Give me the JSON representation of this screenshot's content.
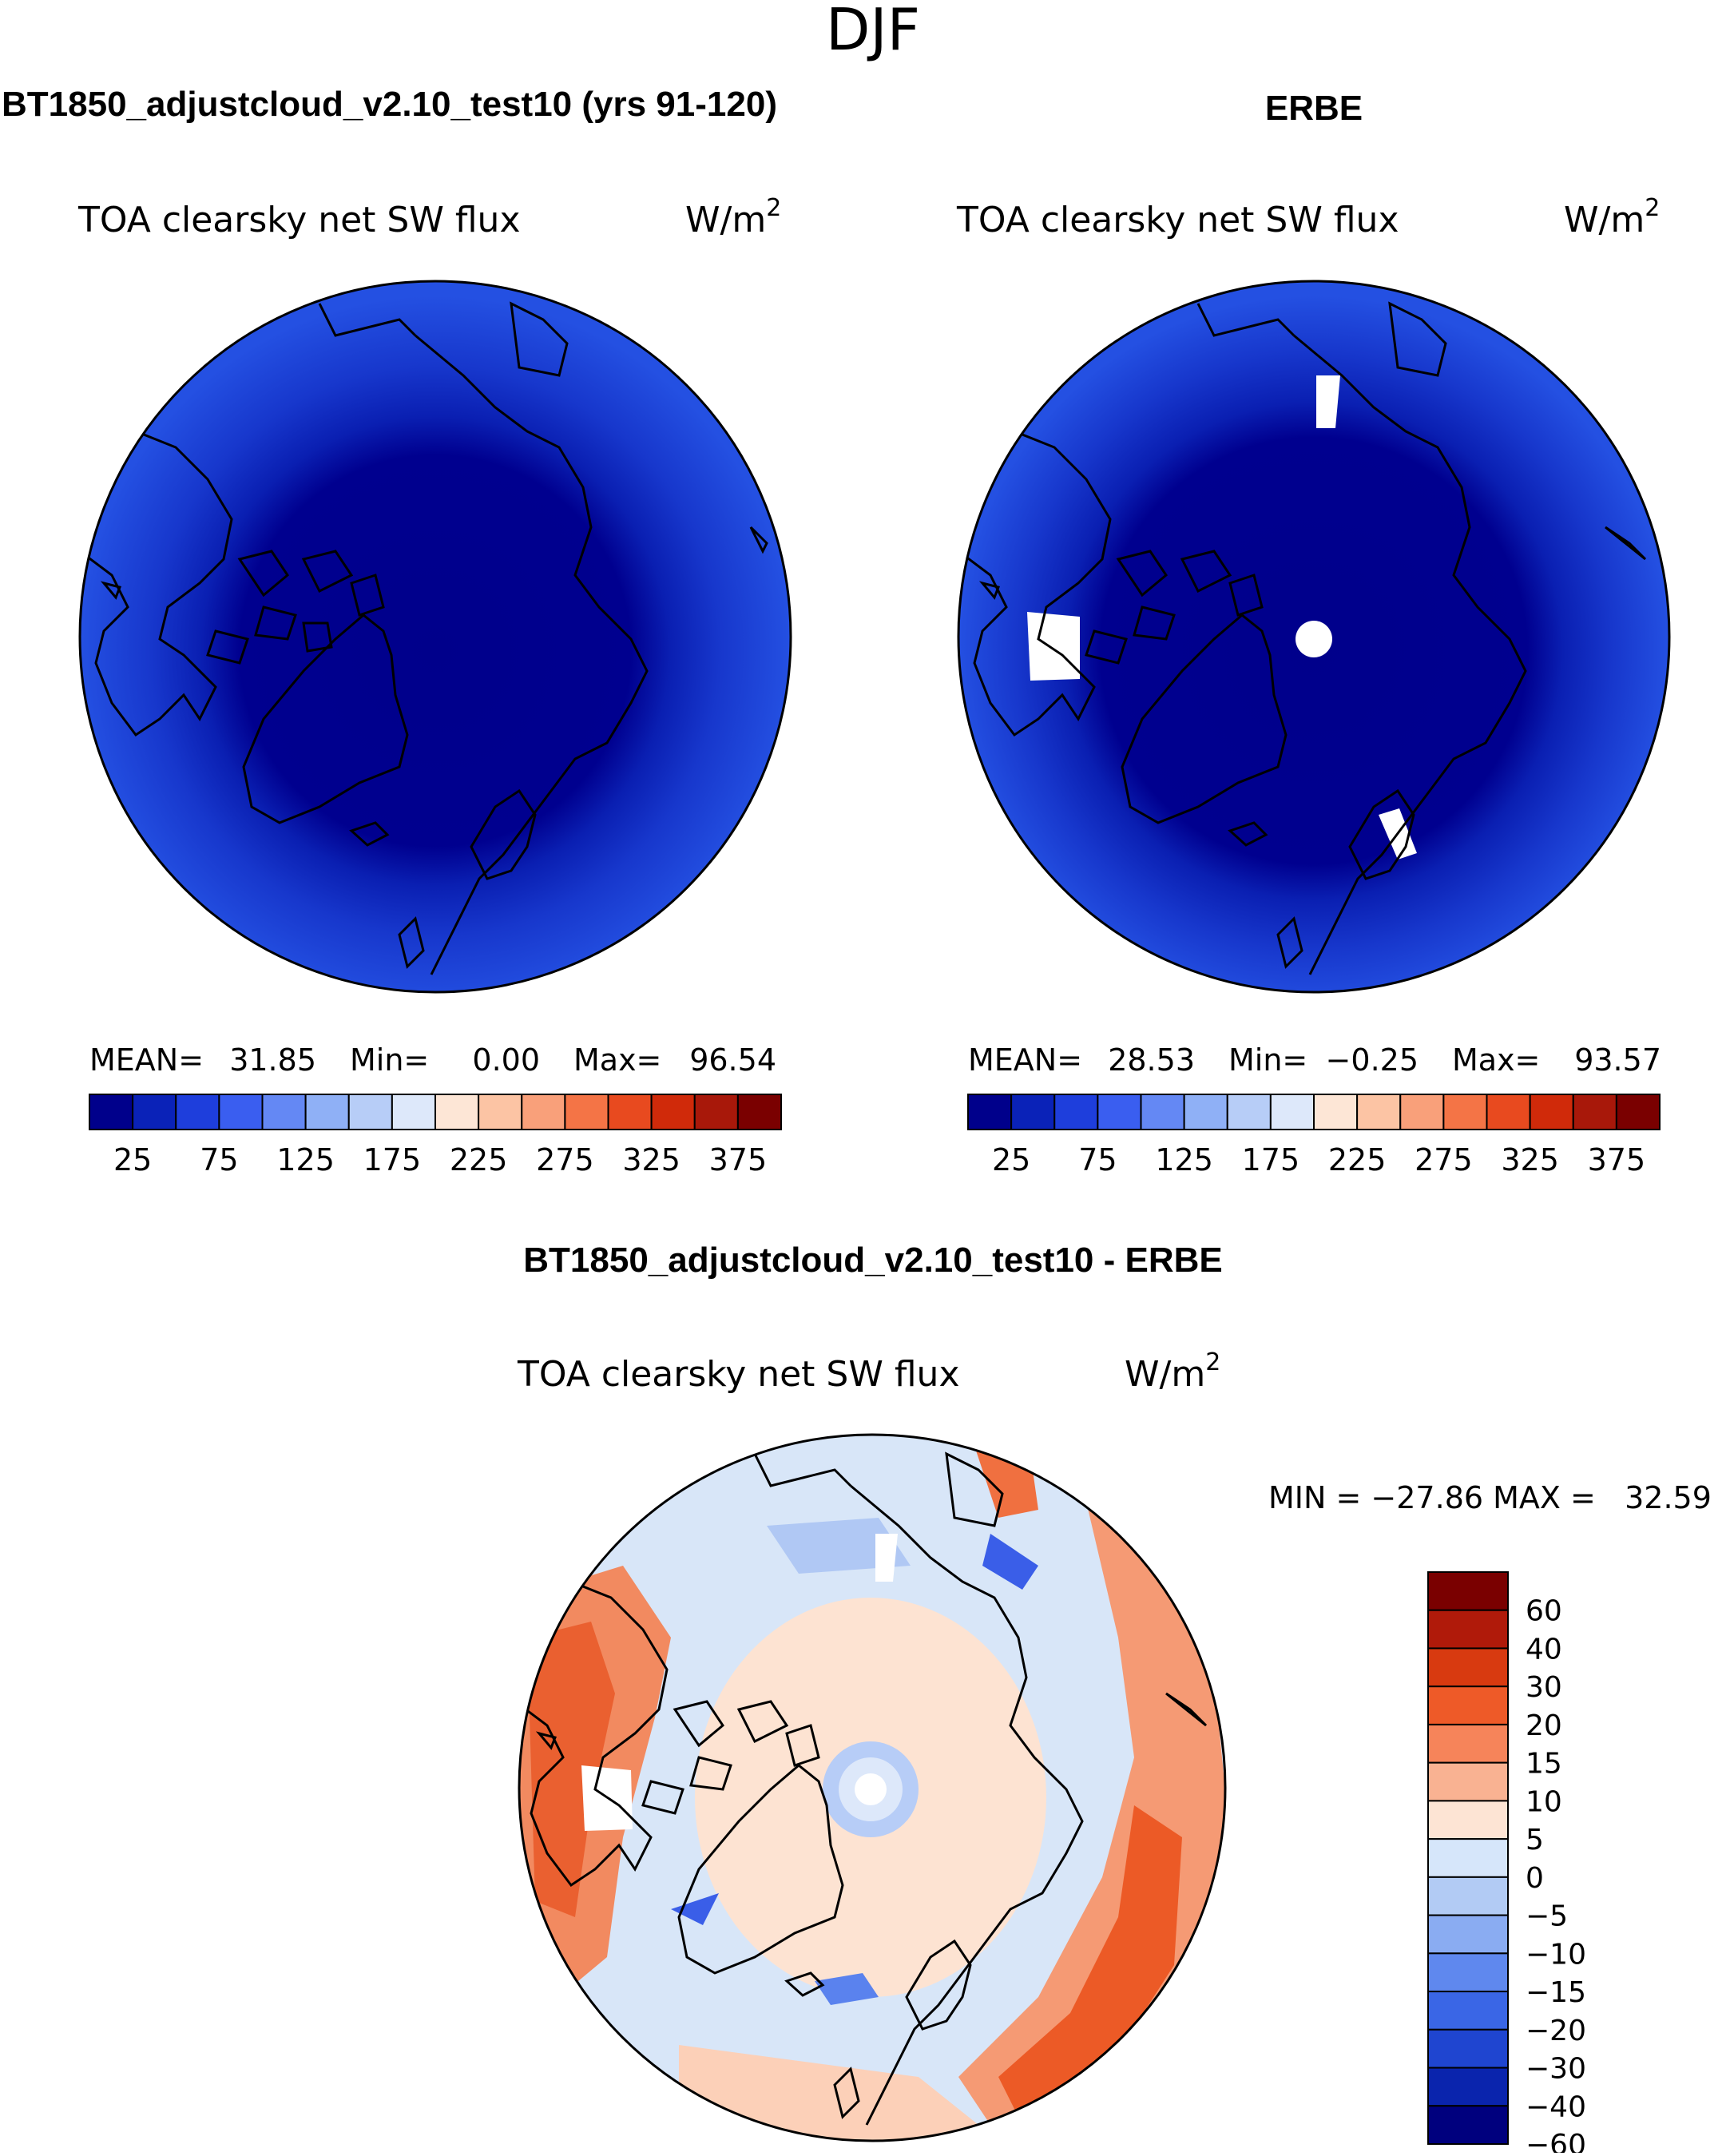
{
  "page_title": "DJF",
  "panels": [
    {
      "title": "BT1850_adjustcloud_v2.10_test10 (yrs 91-120)",
      "field": "TOA clearsky net SW flux",
      "units_base": "W/m",
      "units_exp": "2",
      "stats": {
        "mean_label": "MEAN=",
        "mean": "31.85",
        "min_label": "Min=",
        "min": "0.00",
        "max_label": "Max=",
        "max": "96.54"
      },
      "map_colors": {
        "land_ocean_high_lat": "#0000a0",
        "band_2": "#0a1fb4",
        "band_3": "#1536c8",
        "band_4": "#1f4ee0"
      }
    },
    {
      "title": "ERBE",
      "field": "TOA clearsky net SW flux",
      "units_base": "W/m",
      "units_exp": "2",
      "stats": {
        "mean_label": "MEAN=",
        "mean": "28.53",
        "min_label": "Min=",
        "min": "−0.25",
        "max_label": "Max=",
        "max": "93.57"
      },
      "map_colors": {
        "land_ocean_high_lat": "#0000a0",
        "band_2": "#0a1fb4",
        "band_3": "#1536c8",
        "band_4": "#1f4ee0",
        "missing": "#ffffff"
      }
    }
  ],
  "difference": {
    "title": "BT1850_adjustcloud_v2.10_test10 - ERBE",
    "field": "TOA clearsky net SW flux",
    "units_base": "W/m",
    "units_exp": "2",
    "minmax_text": "MIN = −27.86 MAX =   32.59"
  },
  "chart_data": [
    {
      "type": "heatmap",
      "projection": "north polar stereographic",
      "title": "BT1850_adjustcloud_v2.10_test10 (yrs 91-120)",
      "variable": "TOA clearsky net SW flux",
      "units": "W/m^2",
      "mean": 31.85,
      "min": 0.0,
      "max": 96.54,
      "colorbar": {
        "colors": [
          "#00008b",
          "#0a22b8",
          "#1e3edc",
          "#3a5ef0",
          "#6488f4",
          "#8fb0f6",
          "#b7cdf7",
          "#dde8fa",
          "#fde6d6",
          "#fcc4a4",
          "#f9a07a",
          "#f47446",
          "#e84a1f",
          "#d02a0a",
          "#a8180a",
          "#7a0000"
        ],
        "tick_labels": [
          "25",
          "75",
          "125",
          "175",
          "225",
          "275",
          "325",
          "375"
        ],
        "tick_values": [
          25,
          75,
          125,
          175,
          225,
          275,
          325,
          375
        ]
      }
    },
    {
      "type": "heatmap",
      "projection": "north polar stereographic",
      "title": "ERBE",
      "variable": "TOA clearsky net SW flux",
      "units": "W/m^2",
      "mean": 28.53,
      "min": -0.25,
      "max": 93.57,
      "colorbar": {
        "colors": [
          "#00008b",
          "#0a22b8",
          "#1e3edc",
          "#3a5ef0",
          "#6488f4",
          "#8fb0f6",
          "#b7cdf7",
          "#dde8fa",
          "#fde6d6",
          "#fcc4a4",
          "#f9a07a",
          "#f47446",
          "#e84a1f",
          "#d02a0a",
          "#a8180a",
          "#7a0000"
        ],
        "tick_labels": [
          "25",
          "75",
          "125",
          "175",
          "225",
          "275",
          "325",
          "375"
        ],
        "tick_values": [
          25,
          75,
          125,
          175,
          225,
          275,
          325,
          375
        ]
      }
    },
    {
      "type": "heatmap",
      "projection": "north polar stereographic",
      "title": "BT1850_adjustcloud_v2.10_test10 - ERBE",
      "variable": "TOA clearsky net SW flux",
      "units": "W/m^2",
      "min": -27.86,
      "max": 32.59,
      "colorbar": {
        "colors": [
          "#7a0000",
          "#b01a0a",
          "#d83a10",
          "#ee5a28",
          "#f6845a",
          "#f9b292",
          "#fde4d4",
          "#d6e6fa",
          "#b2cbf4",
          "#8aacf2",
          "#5f88ee",
          "#3a66e6",
          "#1f45d0",
          "#0a24ad",
          "#00007e"
        ],
        "levels": [
          "60",
          "40",
          "30",
          "20",
          "15",
          "10",
          "5",
          "0",
          "−5",
          "−10",
          "−15",
          "−20",
          "−30",
          "−40",
          "−60"
        ]
      }
    }
  ]
}
